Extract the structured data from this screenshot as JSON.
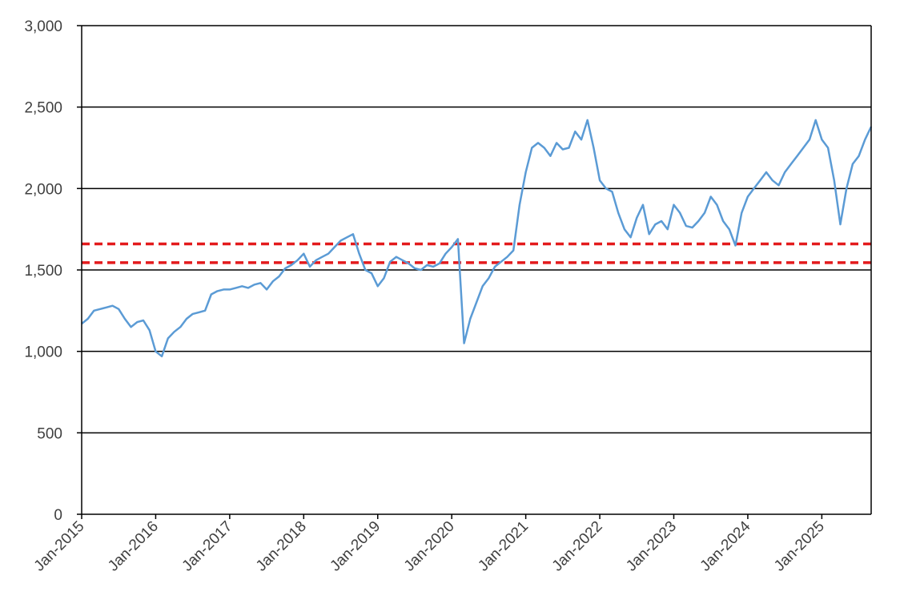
{
  "chart_data": {
    "type": "line",
    "title": "",
    "xlabel": "",
    "ylabel": "",
    "ylim": [
      0,
      3000
    ],
    "xlim": [
      "2015-01",
      "2025-09"
    ],
    "y_ticks": [
      0,
      500,
      1000,
      1500,
      2000,
      2500,
      3000
    ],
    "y_tick_labels": [
      "0",
      "500",
      "1,000",
      "1,500",
      "2,000",
      "2,500",
      "3,000"
    ],
    "x_tick_labels": [
      "Jan-2015",
      "Jan-2016",
      "Jan-2017",
      "Jan-2018",
      "Jan-2019",
      "Jan-2020",
      "Jan-2021",
      "Jan-2022",
      "Jan-2023",
      "Jan-2024",
      "Jan-2025"
    ],
    "grid": "horizontal",
    "colors": {
      "series": "#5B9BD5",
      "reference": "#E31A1C",
      "grid": "#000000"
    },
    "series": [
      {
        "x": [
          "2015-01",
          "2015-02",
          "2015-03",
          "2015-04",
          "2015-05",
          "2015-06",
          "2015-07",
          "2015-08",
          "2015-09",
          "2015-10",
          "2015-11",
          "2015-12",
          "2016-01",
          "2016-02",
          "2016-03",
          "2016-04",
          "2016-05",
          "2016-06",
          "2016-07",
          "2016-08",
          "2016-09",
          "2016-10",
          "2016-11",
          "2016-12",
          "2017-01",
          "2017-02",
          "2017-03",
          "2017-04",
          "2017-05",
          "2017-06",
          "2017-07",
          "2017-08",
          "2017-09",
          "2017-10",
          "2017-11",
          "2017-12",
          "2018-01",
          "2018-02",
          "2018-03",
          "2018-04",
          "2018-05",
          "2018-06",
          "2018-07",
          "2018-08",
          "2018-09",
          "2018-10",
          "2018-11",
          "2018-12",
          "2019-01",
          "2019-02",
          "2019-03",
          "2019-04",
          "2019-05",
          "2019-06",
          "2019-07",
          "2019-08",
          "2019-09",
          "2019-10",
          "2019-11",
          "2019-12",
          "2020-01",
          "2020-02",
          "2020-03",
          "2020-04",
          "2020-05",
          "2020-06",
          "2020-07",
          "2020-08",
          "2020-09",
          "2020-10",
          "2020-11",
          "2020-12",
          "2021-01",
          "2021-02",
          "2021-03",
          "2021-04",
          "2021-05",
          "2021-06",
          "2021-07",
          "2021-08",
          "2021-09",
          "2021-10",
          "2021-11",
          "2021-12",
          "2022-01",
          "2022-02",
          "2022-03",
          "2022-04",
          "2022-05",
          "2022-06",
          "2022-07",
          "2022-08",
          "2022-09",
          "2022-10",
          "2022-11",
          "2022-12",
          "2023-01",
          "2023-02",
          "2023-03",
          "2023-04",
          "2023-05",
          "2023-06",
          "2023-07",
          "2023-08",
          "2023-09",
          "2023-10",
          "2023-11",
          "2023-12",
          "2024-01",
          "2024-02",
          "2024-03",
          "2024-04",
          "2024-05",
          "2024-06",
          "2024-07",
          "2024-08",
          "2024-09",
          "2024-10",
          "2024-11",
          "2024-12",
          "2025-01",
          "2025-02",
          "2025-03",
          "2025-04",
          "2025-05",
          "2025-06",
          "2025-07",
          "2025-08",
          "2025-09"
        ],
        "values": [
          1170,
          1200,
          1250,
          1260,
          1270,
          1280,
          1260,
          1200,
          1150,
          1180,
          1190,
          1130,
          1000,
          970,
          1080,
          1120,
          1150,
          1200,
          1230,
          1240,
          1250,
          1350,
          1370,
          1380,
          1380,
          1390,
          1400,
          1390,
          1410,
          1420,
          1380,
          1430,
          1460,
          1510,
          1530,
          1560,
          1600,
          1520,
          1560,
          1580,
          1600,
          1640,
          1680,
          1700,
          1720,
          1600,
          1500,
          1480,
          1400,
          1450,
          1550,
          1580,
          1560,
          1540,
          1510,
          1500,
          1530,
          1520,
          1540,
          1600,
          1640,
          1690,
          1050,
          1200,
          1300,
          1400,
          1450,
          1520,
          1550,
          1580,
          1620,
          1900,
          2100,
          2250,
          2280,
          2250,
          2200,
          2280,
          2240,
          2250,
          2350,
          2300,
          2420,
          2250,
          2050,
          2000,
          1980,
          1850,
          1750,
          1700,
          1820,
          1900,
          1720,
          1780,
          1800,
          1750,
          1900,
          1850,
          1770,
          1760,
          1800,
          1850,
          1950,
          1900,
          1800,
          1750,
          1650,
          1850,
          1950,
          2000,
          2050,
          2100,
          2050,
          2020,
          2100,
          2150,
          2200,
          2250,
          2300,
          2420,
          2300,
          2250,
          2050,
          1780,
          2000,
          2150,
          2200,
          2300,
          2380
        ]
      }
    ],
    "reference_lines": [
      1660,
      1545
    ]
  }
}
